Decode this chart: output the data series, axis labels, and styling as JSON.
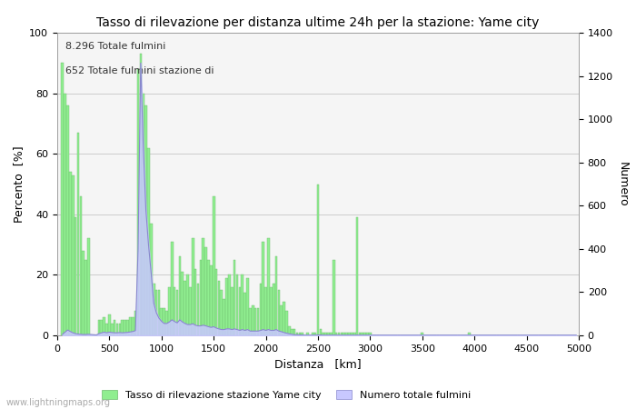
{
  "title": "Tasso di rilevazione per distanza ultime 24h per la stazione: Yame city",
  "xlabel": "Distanza   [km]",
  "ylabel_left": "Percento  [%]",
  "ylabel_right": "Numero",
  "annotation_line1": "8.296 Totale fulmini",
  "annotation_line2": "652 Totale fulmini stazione di",
  "legend_green": "Tasso di rilevazione stazione Yame city",
  "legend_blue": "Numero totale fulmini",
  "watermark": "www.lightningmaps.org",
  "xlim": [
    0,
    5000
  ],
  "ylim_left": [
    0,
    100
  ],
  "ylim_right": [
    0,
    1400
  ],
  "yticks_left": [
    0,
    20,
    40,
    60,
    80,
    100
  ],
  "yticks_right": [
    0,
    200,
    400,
    600,
    800,
    1000,
    1200,
    1400
  ],
  "xticks": [
    0,
    500,
    1000,
    1500,
    2000,
    2500,
    3000,
    3500,
    4000,
    4500,
    5000
  ],
  "bar_color": "#90EE90",
  "bar_edge_color": "#6dbb6d",
  "blue_fill_color": "#c8c8ff",
  "blue_line_color": "#8888cc",
  "background_color": "#f5f5f5",
  "grid_color": "#cccccc",
  "title_fontsize": 10,
  "label_fontsize": 9,
  "tick_fontsize": 8,
  "annot_fontsize": 8,
  "legend_fontsize": 8,
  "green_bars": [
    [
      50,
      90
    ],
    [
      75,
      80
    ],
    [
      100,
      76
    ],
    [
      125,
      54
    ],
    [
      150,
      53
    ],
    [
      175,
      39
    ],
    [
      200,
      67
    ],
    [
      225,
      46
    ],
    [
      250,
      28
    ],
    [
      275,
      25
    ],
    [
      300,
      32
    ],
    [
      325,
      0
    ],
    [
      350,
      0
    ],
    [
      375,
      0
    ],
    [
      400,
      5
    ],
    [
      425,
      5
    ],
    [
      450,
      6
    ],
    [
      475,
      4
    ],
    [
      500,
      7
    ],
    [
      525,
      4
    ],
    [
      550,
      5
    ],
    [
      575,
      4
    ],
    [
      600,
      4
    ],
    [
      625,
      5
    ],
    [
      650,
      5
    ],
    [
      675,
      5
    ],
    [
      700,
      6
    ],
    [
      725,
      6
    ],
    [
      750,
      8
    ],
    [
      775,
      88
    ],
    [
      800,
      93
    ],
    [
      825,
      80
    ],
    [
      850,
      76
    ],
    [
      875,
      62
    ],
    [
      900,
      37
    ],
    [
      925,
      17
    ],
    [
      950,
      15
    ],
    [
      975,
      15
    ],
    [
      1000,
      9
    ],
    [
      1025,
      9
    ],
    [
      1050,
      8
    ],
    [
      1075,
      16
    ],
    [
      1100,
      31
    ],
    [
      1125,
      16
    ],
    [
      1150,
      15
    ],
    [
      1175,
      26
    ],
    [
      1200,
      21
    ],
    [
      1225,
      18
    ],
    [
      1250,
      20
    ],
    [
      1275,
      16
    ],
    [
      1300,
      32
    ],
    [
      1325,
      22
    ],
    [
      1350,
      17
    ],
    [
      1375,
      25
    ],
    [
      1400,
      32
    ],
    [
      1425,
      29
    ],
    [
      1450,
      25
    ],
    [
      1475,
      23
    ],
    [
      1500,
      46
    ],
    [
      1525,
      22
    ],
    [
      1550,
      18
    ],
    [
      1575,
      15
    ],
    [
      1600,
      12
    ],
    [
      1625,
      19
    ],
    [
      1650,
      20
    ],
    [
      1675,
      16
    ],
    [
      1700,
      25
    ],
    [
      1725,
      20
    ],
    [
      1750,
      16
    ],
    [
      1775,
      20
    ],
    [
      1800,
      14
    ],
    [
      1825,
      19
    ],
    [
      1850,
      9
    ],
    [
      1875,
      10
    ],
    [
      1900,
      9
    ],
    [
      1925,
      9
    ],
    [
      1950,
      17
    ],
    [
      1975,
      31
    ],
    [
      2000,
      16
    ],
    [
      2025,
      32
    ],
    [
      2050,
      16
    ],
    [
      2075,
      17
    ],
    [
      2100,
      26
    ],
    [
      2125,
      15
    ],
    [
      2150,
      10
    ],
    [
      2175,
      11
    ],
    [
      2200,
      8
    ],
    [
      2225,
      3
    ],
    [
      2250,
      2
    ],
    [
      2275,
      2
    ],
    [
      2300,
      1
    ],
    [
      2325,
      1
    ],
    [
      2350,
      1
    ],
    [
      2375,
      0
    ],
    [
      2400,
      1
    ],
    [
      2425,
      0
    ],
    [
      2450,
      1
    ],
    [
      2475,
      1
    ],
    [
      2500,
      50
    ],
    [
      2525,
      2
    ],
    [
      2550,
      1
    ],
    [
      2575,
      1
    ],
    [
      2600,
      1
    ],
    [
      2625,
      1
    ],
    [
      2650,
      25
    ],
    [
      2675,
      1
    ],
    [
      2700,
      1
    ],
    [
      2725,
      1
    ],
    [
      2750,
      1
    ],
    [
      2775,
      1
    ],
    [
      2800,
      1
    ],
    [
      2825,
      1
    ],
    [
      2850,
      1
    ],
    [
      2875,
      39
    ],
    [
      2900,
      1
    ],
    [
      2925,
      1
    ],
    [
      2950,
      1
    ],
    [
      2975,
      1
    ],
    [
      3000,
      1
    ],
    [
      3025,
      0
    ],
    [
      3050,
      0
    ],
    [
      3075,
      0
    ],
    [
      3100,
      0
    ],
    [
      3125,
      0
    ],
    [
      3150,
      0
    ],
    [
      3175,
      0
    ],
    [
      3200,
      0
    ],
    [
      3225,
      0
    ],
    [
      3250,
      0
    ],
    [
      3275,
      0
    ],
    [
      3300,
      0
    ],
    [
      3325,
      0
    ],
    [
      3350,
      0
    ],
    [
      3375,
      0
    ],
    [
      3400,
      0
    ],
    [
      3425,
      0
    ],
    [
      3450,
      0
    ],
    [
      3475,
      0
    ],
    [
      3500,
      1
    ],
    [
      3525,
      0
    ],
    [
      3550,
      0
    ],
    [
      3575,
      0
    ],
    [
      3600,
      0
    ],
    [
      3625,
      0
    ],
    [
      3650,
      0
    ],
    [
      3675,
      0
    ],
    [
      3700,
      0
    ],
    [
      3725,
      0
    ],
    [
      3750,
      0
    ],
    [
      3775,
      0
    ],
    [
      3800,
      0
    ],
    [
      3825,
      0
    ],
    [
      3850,
      0
    ],
    [
      3875,
      0
    ],
    [
      3900,
      0
    ],
    [
      3925,
      0
    ],
    [
      3950,
      1
    ],
    [
      3975,
      0
    ],
    [
      4000,
      0
    ],
    [
      4025,
      0
    ],
    [
      4050,
      0
    ],
    [
      4075,
      0
    ],
    [
      4100,
      0
    ],
    [
      4125,
      0
    ],
    [
      4150,
      0
    ],
    [
      4175,
      0
    ],
    [
      4200,
      0
    ],
    [
      4225,
      0
    ],
    [
      4250,
      0
    ],
    [
      4275,
      0
    ],
    [
      4300,
      0
    ],
    [
      4325,
      0
    ],
    [
      4350,
      0
    ],
    [
      4375,
      0
    ],
    [
      4400,
      0
    ],
    [
      4425,
      0
    ],
    [
      4450,
      0
    ],
    [
      4475,
      0
    ],
    [
      4500,
      0
    ],
    [
      4525,
      0
    ],
    [
      4550,
      0
    ],
    [
      4575,
      0
    ],
    [
      4600,
      0
    ],
    [
      4625,
      0
    ],
    [
      4650,
      0
    ],
    [
      4675,
      0
    ],
    [
      4700,
      0
    ],
    [
      4725,
      0
    ],
    [
      4750,
      0
    ],
    [
      4775,
      0
    ],
    [
      4800,
      0
    ],
    [
      4825,
      0
    ],
    [
      4850,
      0
    ],
    [
      4875,
      0
    ],
    [
      4900,
      0
    ],
    [
      4925,
      0
    ],
    [
      4950,
      0
    ],
    [
      4975,
      0
    ]
  ],
  "blue_line": [
    [
      50,
      5
    ],
    [
      75,
      15
    ],
    [
      100,
      25
    ],
    [
      125,
      18
    ],
    [
      150,
      12
    ],
    [
      175,
      8
    ],
    [
      200,
      6
    ],
    [
      225,
      5
    ],
    [
      250,
      4
    ],
    [
      275,
      4
    ],
    [
      300,
      5
    ],
    [
      325,
      4
    ],
    [
      350,
      3
    ],
    [
      375,
      2
    ],
    [
      400,
      8
    ],
    [
      425,
      12
    ],
    [
      450,
      15
    ],
    [
      475,
      12
    ],
    [
      500,
      15
    ],
    [
      525,
      13
    ],
    [
      550,
      12
    ],
    [
      575,
      12
    ],
    [
      600,
      13
    ],
    [
      625,
      12
    ],
    [
      650,
      13
    ],
    [
      675,
      14
    ],
    [
      700,
      16
    ],
    [
      725,
      18
    ],
    [
      750,
      22
    ],
    [
      775,
      400
    ],
    [
      800,
      1260
    ],
    [
      825,
      870
    ],
    [
      850,
      580
    ],
    [
      875,
      420
    ],
    [
      900,
      290
    ],
    [
      925,
      150
    ],
    [
      950,
      105
    ],
    [
      975,
      80
    ],
    [
      1000,
      65
    ],
    [
      1025,
      55
    ],
    [
      1050,
      55
    ],
    [
      1075,
      62
    ],
    [
      1100,
      72
    ],
    [
      1125,
      64
    ],
    [
      1150,
      58
    ],
    [
      1175,
      72
    ],
    [
      1200,
      62
    ],
    [
      1225,
      55
    ],
    [
      1250,
      50
    ],
    [
      1275,
      50
    ],
    [
      1300,
      54
    ],
    [
      1325,
      47
    ],
    [
      1350,
      44
    ],
    [
      1375,
      44
    ],
    [
      1400,
      47
    ],
    [
      1425,
      44
    ],
    [
      1450,
      40
    ],
    [
      1475,
      37
    ],
    [
      1500,
      40
    ],
    [
      1525,
      34
    ],
    [
      1550,
      30
    ],
    [
      1575,
      27
    ],
    [
      1600,
      27
    ],
    [
      1625,
      30
    ],
    [
      1650,
      30
    ],
    [
      1675,
      27
    ],
    [
      1700,
      30
    ],
    [
      1725,
      27
    ],
    [
      1750,
      23
    ],
    [
      1775,
      27
    ],
    [
      1800,
      23
    ],
    [
      1825,
      27
    ],
    [
      1850,
      20
    ],
    [
      1875,
      20
    ],
    [
      1900,
      20
    ],
    [
      1925,
      20
    ],
    [
      1950,
      23
    ],
    [
      1975,
      27
    ],
    [
      2000,
      23
    ],
    [
      2025,
      27
    ],
    [
      2050,
      23
    ],
    [
      2075,
      23
    ],
    [
      2100,
      27
    ],
    [
      2125,
      20
    ],
    [
      2150,
      17
    ],
    [
      2175,
      13
    ],
    [
      2200,
      10
    ],
    [
      2225,
      7
    ],
    [
      2250,
      5
    ],
    [
      2275,
      3
    ],
    [
      2300,
      3
    ],
    [
      2325,
      2
    ],
    [
      2350,
      2
    ],
    [
      2375,
      1
    ],
    [
      2400,
      1
    ],
    [
      2425,
      1
    ],
    [
      2450,
      1
    ],
    [
      2475,
      1
    ],
    [
      2500,
      2
    ],
    [
      2525,
      2
    ],
    [
      2550,
      1
    ],
    [
      2575,
      1
    ],
    [
      2600,
      1
    ],
    [
      2625,
      1
    ],
    [
      2650,
      1
    ],
    [
      2675,
      1
    ],
    [
      2700,
      1
    ],
    [
      2725,
      1
    ],
    [
      2750,
      1
    ],
    [
      2775,
      1
    ],
    [
      2800,
      1
    ],
    [
      2825,
      1
    ],
    [
      2850,
      1
    ],
    [
      2875,
      1
    ],
    [
      2900,
      1
    ],
    [
      2925,
      1
    ],
    [
      2950,
      1
    ],
    [
      2975,
      1
    ],
    [
      3000,
      1
    ],
    [
      3025,
      1
    ],
    [
      3050,
      1
    ],
    [
      3075,
      1
    ],
    [
      3100,
      1
    ],
    [
      3125,
      1
    ],
    [
      3150,
      1
    ],
    [
      3175,
      1
    ],
    [
      3200,
      1
    ],
    [
      3225,
      1
    ],
    [
      3250,
      1
    ],
    [
      3275,
      1
    ],
    [
      3300,
      1
    ],
    [
      3325,
      1
    ],
    [
      3350,
      1
    ],
    [
      3375,
      1
    ],
    [
      3400,
      1
    ],
    [
      3425,
      1
    ],
    [
      3450,
      1
    ],
    [
      3475,
      1
    ],
    [
      3500,
      1
    ],
    [
      3525,
      1
    ],
    [
      3550,
      1
    ],
    [
      3575,
      1
    ],
    [
      3600,
      1
    ],
    [
      3625,
      1
    ],
    [
      3650,
      1
    ],
    [
      3675,
      1
    ],
    [
      3700,
      1
    ],
    [
      3725,
      1
    ],
    [
      3750,
      1
    ],
    [
      3775,
      1
    ],
    [
      3800,
      1
    ],
    [
      3825,
      1
    ],
    [
      3850,
      1
    ],
    [
      3875,
      1
    ],
    [
      3900,
      1
    ],
    [
      3925,
      1
    ],
    [
      3950,
      1
    ],
    [
      3975,
      1
    ],
    [
      4000,
      1
    ],
    [
      4025,
      1
    ],
    [
      4050,
      1
    ],
    [
      4075,
      1
    ],
    [
      4100,
      1
    ],
    [
      4125,
      1
    ],
    [
      4150,
      1
    ],
    [
      4175,
      1
    ],
    [
      4200,
      1
    ],
    [
      4225,
      1
    ],
    [
      4250,
      1
    ],
    [
      4275,
      1
    ],
    [
      4300,
      1
    ],
    [
      4325,
      1
    ],
    [
      4350,
      1
    ],
    [
      4375,
      1
    ],
    [
      4400,
      1
    ],
    [
      4425,
      1
    ],
    [
      4450,
      1
    ],
    [
      4475,
      1
    ],
    [
      4500,
      1
    ],
    [
      4525,
      1
    ],
    [
      4550,
      1
    ],
    [
      4575,
      1
    ],
    [
      4600,
      1
    ],
    [
      4625,
      1
    ],
    [
      4650,
      1
    ],
    [
      4675,
      1
    ],
    [
      4700,
      1
    ],
    [
      4725,
      1
    ],
    [
      4750,
      1
    ],
    [
      4775,
      1
    ],
    [
      4800,
      1
    ],
    [
      4825,
      1
    ],
    [
      4850,
      1
    ],
    [
      4875,
      1
    ],
    [
      4900,
      1
    ],
    [
      4925,
      1
    ],
    [
      4950,
      1
    ],
    [
      4975,
      1
    ]
  ]
}
